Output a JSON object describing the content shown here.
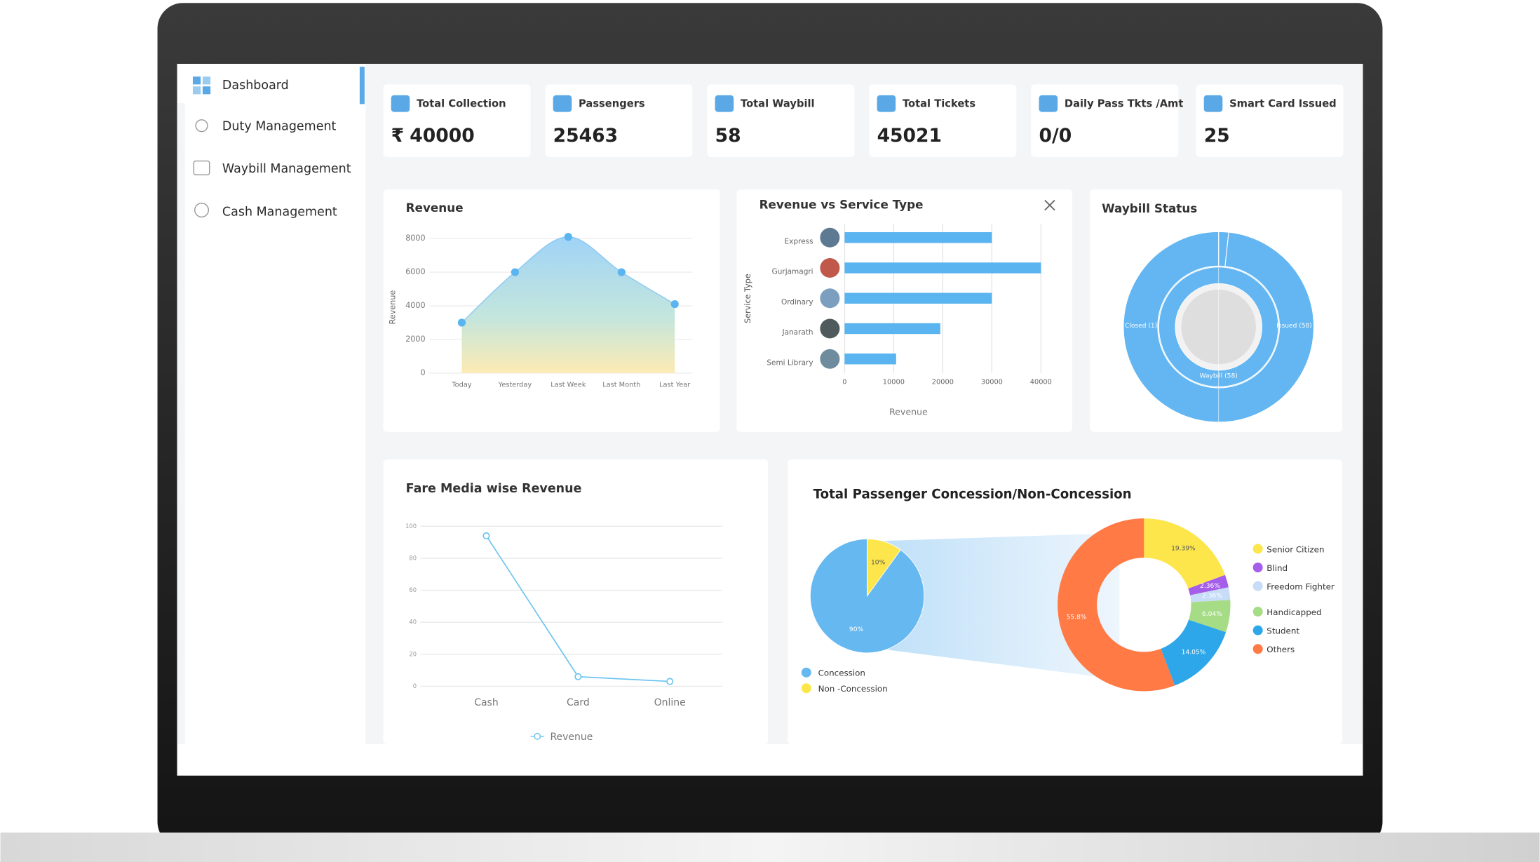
{
  "sidebar": {
    "items": [
      "Dashboard",
      "Duty Management",
      "Waybill Management",
      "Cash Management"
    ]
  },
  "stats": [
    {
      "label": "Total Collection",
      "currency": "₹",
      "value": "40000"
    },
    {
      "label": "Passengers",
      "value": "25463"
    },
    {
      "label": "Total Waybill",
      "value": "58"
    },
    {
      "label": "Total Tickets",
      "value": "45021"
    },
    {
      "label": "Daily Pass Tkts /Amt",
      "value": "0/0"
    },
    {
      "label": "Smart Card Issued",
      "value": "25"
    }
  ],
  "revenue_chart": {
    "type": "area",
    "title": "Revenue",
    "y_label": "Revenue",
    "categories": [
      "Today",
      "Yesterday",
      "Last Week",
      "Last Month",
      "Last Year"
    ],
    "values": [
      3000,
      6000,
      8100,
      6000,
      4100
    ],
    "ylim": [
      0,
      8000
    ],
    "yticks": [
      0,
      2000,
      4000,
      6000,
      8000
    ],
    "grid": true,
    "color": "#5ab4ef"
  },
  "service_chart": {
    "type": "hbar",
    "title": "Revenue vs Service Type",
    "y_label": "Service Type",
    "x_label": "Revenue",
    "categories": [
      "Express",
      "Gurjamagri",
      "Ordinary",
      "Janarath",
      "Semi Library"
    ],
    "values": [
      30000,
      40000,
      30000,
      19500,
      10500
    ],
    "xlim": [
      0,
      40000
    ],
    "xticks": [
      0,
      10000,
      20000,
      30000,
      40000
    ],
    "grid": true,
    "color": "#5ab4ef"
  },
  "waybill_status": {
    "type": "sunburst",
    "title": "Waybill Status",
    "inner": {
      "label": "Waybill (58)",
      "value": 58
    },
    "outer": [
      {
        "label": "Closed (1)",
        "value": 1
      },
      {
        "label": "Issued (58)",
        "value": 58
      }
    ],
    "color": "#63b6f1"
  },
  "fare_media_chart": {
    "type": "line",
    "title": "Fare Media wise Revenue",
    "categories": [
      "Cash",
      "Card",
      "Online"
    ],
    "series": [
      {
        "name": "Revenue",
        "color": "#6cc4f0",
        "values": [
          94,
          6,
          3
        ]
      }
    ],
    "ylim": [
      0,
      100
    ],
    "yticks": [
      0,
      20,
      40,
      60,
      80,
      100
    ],
    "grid": true
  },
  "concession_chart": {
    "type": "pie-of-donut",
    "title": "Total Passenger Concession/Non-Concession",
    "pie": {
      "categories": [
        "Concession",
        "Non -Concession"
      ],
      "values": [
        90,
        10
      ],
      "value_labels": [
        "90%",
        "10%"
      ],
      "colors": [
        "#66b8f0",
        "#fde64b"
      ]
    },
    "donut": {
      "categories": [
        "Senior Citizen",
        "Blind",
        "Freedom Fighter",
        "Handicapped",
        "Student",
        "Others"
      ],
      "values": [
        19.39,
        2.36,
        2.36,
        6.04,
        14.05,
        55.8
      ],
      "value_labels": [
        "19.39%",
        "2.36%",
        "2.36%",
        "6.04%",
        "14.05%",
        "55.8%"
      ],
      "colors": [
        "#fde64b",
        "#a55eea",
        "#c6dcf7",
        "#a6dc86",
        "#2ea7ea",
        "#ff7a45"
      ]
    }
  }
}
